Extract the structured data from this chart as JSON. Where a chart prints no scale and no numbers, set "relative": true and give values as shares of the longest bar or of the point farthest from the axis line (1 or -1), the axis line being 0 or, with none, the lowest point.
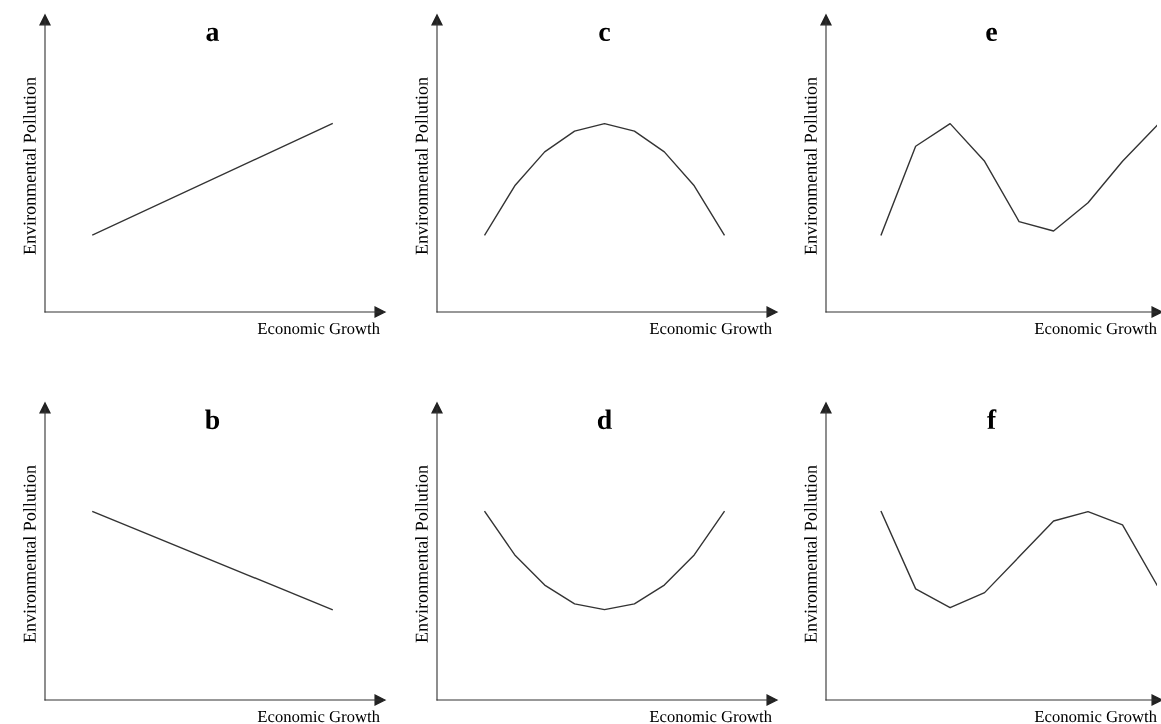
{
  "chart_data": [
    {
      "type": "line",
      "title": "a",
      "xlabel": "Economic Growth",
      "ylabel": "Environmental Pollution",
      "relative": true,
      "categories": [
        null,
        null
      ],
      "series": [
        {
          "color": "#333333",
          "values": [
            0.41,
            1.0
          ]
        }
      ]
    },
    {
      "type": "line",
      "title": "c",
      "xlabel": "Economic Growth",
      "ylabel": "Environmental Pollution",
      "relative": true,
      "categories": [
        null,
        null,
        null,
        null,
        null,
        null,
        null,
        null,
        null
      ],
      "series": [
        {
          "color": "#333333",
          "values": [
            0.41,
            0.67,
            0.85,
            0.96,
            1.0,
            0.96,
            0.85,
            0.67,
            0.41
          ]
        }
      ]
    },
    {
      "type": "line",
      "title": "e",
      "xlabel": "Economic Growth",
      "ylabel": "Environmental Pollution",
      "relative": true,
      "categories": [
        null,
        null,
        null,
        null,
        null,
        null,
        null,
        null,
        null
      ],
      "series": [
        {
          "color": "#333333",
          "values": [
            0.41,
            0.88,
            1.0,
            0.8,
            0.48,
            0.43,
            0.58,
            0.8,
            0.99
          ]
        }
      ]
    },
    {
      "type": "line",
      "title": "b",
      "xlabel": "Economic Growth",
      "ylabel": "Environmental Pollution",
      "relative": true,
      "categories": [
        null,
        null
      ],
      "series": [
        {
          "color": "#333333",
          "values": [
            1.0,
            0.48
          ]
        }
      ]
    },
    {
      "type": "line",
      "title": "d",
      "xlabel": "Economic Growth",
      "ylabel": "Environmental Pollution",
      "relative": true,
      "categories": [
        null,
        null,
        null,
        null,
        null,
        null,
        null,
        null,
        null
      ],
      "series": [
        {
          "color": "#333333",
          "values": [
            1.0,
            0.77,
            0.61,
            0.51,
            0.48,
            0.51,
            0.61,
            0.77,
            1.0
          ]
        }
      ]
    },
    {
      "type": "line",
      "title": "f",
      "xlabel": "Economic Growth",
      "ylabel": "Environmental Pollution",
      "relative": true,
      "categories": [
        null,
        null,
        null,
        null,
        null,
        null,
        null,
        null,
        null
      ],
      "series": [
        {
          "color": "#333333",
          "values": [
            1.0,
            0.59,
            0.49,
            0.57,
            0.76,
            0.95,
            1.0,
            0.93,
            0.61
          ]
        }
      ]
    }
  ]
}
